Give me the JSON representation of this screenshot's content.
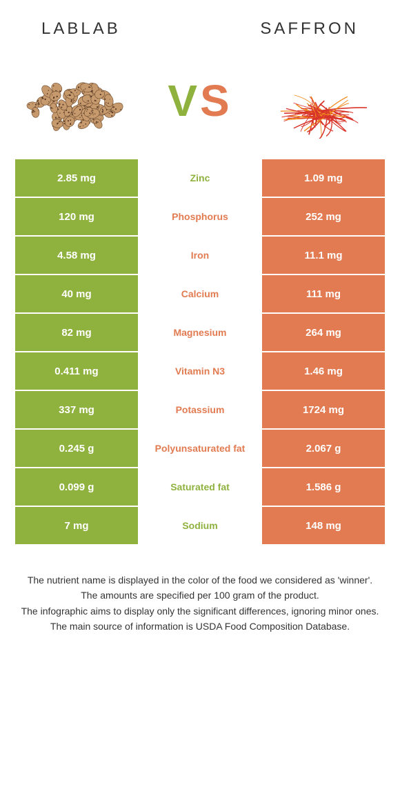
{
  "header": {
    "left": "LABLAB",
    "right": "SAFFRON"
  },
  "vs": {
    "v_color": "#8fb23f",
    "s_color": "#e27b51"
  },
  "colors": {
    "left_bg": "#8fb23f",
    "right_bg": "#e27b51",
    "mid_green": "#8fb23f",
    "mid_orange": "#e27b51",
    "cell_text": "#ffffff"
  },
  "food_images": {
    "left": {
      "bean_fill": "#c69a6d",
      "bean_stroke": "#6b4a2f",
      "speck": "#5a3b28"
    },
    "right": {
      "thread": "#d8342a",
      "thread2": "#f08a1c"
    }
  },
  "rows": [
    {
      "left": "2.85 mg",
      "mid": "Zinc",
      "right": "1.09 mg",
      "winner": "left"
    },
    {
      "left": "120 mg",
      "mid": "Phosphorus",
      "right": "252 mg",
      "winner": "right"
    },
    {
      "left": "4.58 mg",
      "mid": "Iron",
      "right": "11.1 mg",
      "winner": "right"
    },
    {
      "left": "40 mg",
      "mid": "Calcium",
      "right": "111 mg",
      "winner": "right"
    },
    {
      "left": "82 mg",
      "mid": "Magnesium",
      "right": "264 mg",
      "winner": "right"
    },
    {
      "left": "0.411 mg",
      "mid": "Vitamin N3",
      "right": "1.46 mg",
      "winner": "right"
    },
    {
      "left": "337 mg",
      "mid": "Potassium",
      "right": "1724 mg",
      "winner": "right"
    },
    {
      "left": "0.245 g",
      "mid": "Polyunsaturated fat",
      "right": "2.067 g",
      "winner": "right"
    },
    {
      "left": "0.099 g",
      "mid": "Saturated fat",
      "right": "1.586 g",
      "winner": "left"
    },
    {
      "left": "7 mg",
      "mid": "Sodium",
      "right": "148 mg",
      "winner": "left"
    }
  ],
  "footer": {
    "l1": "The nutrient name is displayed in the color of the food we considered as 'winner'.",
    "l2": "The amounts are specified per 100 gram of the product.",
    "l3": "The infographic aims to display only the significant differences, ignoring minor ones.",
    "l4": "The main source of information is USDA Food Composition Database."
  }
}
